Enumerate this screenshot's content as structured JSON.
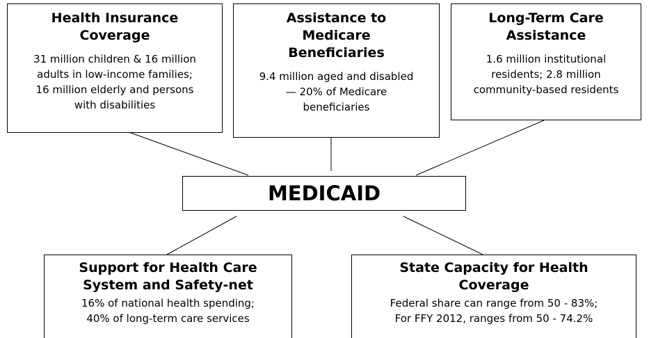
{
  "center": "MEDICAID",
  "boxes": [
    {
      "title": [
        "Health Insurance",
        "Coverage"
      ],
      "body": [
        "31 million children & 16 million",
        "adults in low-income families;",
        "16 million elderly and persons",
        "with disabilities"
      ]
    },
    {
      "title": [
        "Assistance to",
        "Medicare",
        "Beneficiaries"
      ],
      "body": [
        "9.4 million aged and disabled",
        "— 20% of Medicare",
        "beneficiaries"
      ]
    },
    {
      "title": [
        "Long-Term Care",
        "Assistance"
      ],
      "body": [
        "1.6 million institutional",
        "residents; 2.8 million",
        "community-based residents"
      ]
    },
    {
      "title": [
        "Support for Health Care",
        "System and Safety-net"
      ],
      "body": [
        "16% of national health spending;",
        "40% of long-term care services"
      ]
    },
    {
      "title": [
        "State Capacity for Health",
        "Coverage"
      ],
      "body": [
        "Federal share can range from 50 - 83%;",
        "For FFY 2012, ranges from 50 - 74.2%"
      ]
    }
  ]
}
